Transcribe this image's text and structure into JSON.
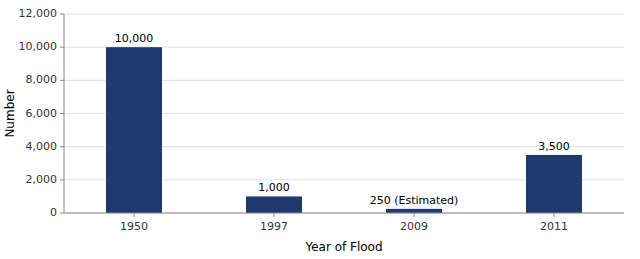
{
  "chart_data": {
    "type": "bar",
    "categories": [
      "1950",
      "1997",
      "2009",
      "2011"
    ],
    "values": [
      10000,
      1000,
      250,
      3500
    ],
    "value_labels": [
      "10,000",
      "1,000",
      "250 (Estimated)",
      "3,500"
    ],
    "color": "#1F3A6E",
    "xlabel": "Year of Flood",
    "ylabel": "Number",
    "ylim": [
      0,
      12000
    ],
    "yticks": [
      0,
      {
        "value": 2000,
        "label": "2,000"
      },
      {
        "value": 4000,
        "label": "4,000"
      },
      {
        "value": 6000,
        "label": "6,000"
      },
      {
        "value": 8000,
        "label": "8,000"
      },
      {
        "value": 10000,
        "label": "10,000"
      },
      {
        "value": 12000,
        "label": "12,000"
      }
    ],
    "grid": true,
    "data_labels": true
  }
}
